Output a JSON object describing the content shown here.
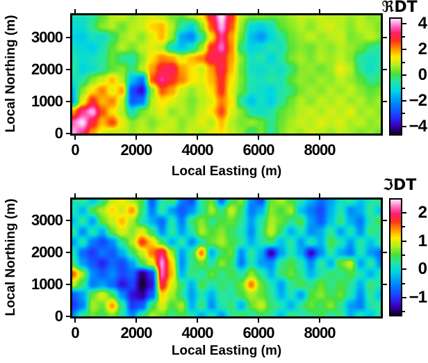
{
  "page": {
    "background": "#ffffff"
  },
  "colormap": {
    "positions": [
      0.0,
      0.08,
      0.16,
      0.26,
      0.38,
      0.46,
      0.52,
      0.6,
      0.67,
      0.74,
      0.81,
      0.88,
      0.94,
      1.0
    ],
    "colors": [
      "#140028",
      "#3c00c8",
      "#1e3cff",
      "#0082ff",
      "#00d7e1",
      "#28e6a0",
      "#46e13c",
      "#b4f01e",
      "#ffeb00",
      "#ff9600",
      "#ff3219",
      "#ff1e6e",
      "#ff6ec8",
      "#ffe1f5"
    ]
  },
  "chart_data": [
    {
      "type": "heatmap",
      "title": "ℜDT",
      "xlabel": "Local Easting (m)",
      "ylabel": "Local Northing (m)",
      "x_range": [
        0,
        10000
      ],
      "y_range": [
        0,
        3700
      ],
      "x_ticks": [
        0,
        2000,
        4000,
        6000,
        8000
      ],
      "x_tick_labels": [
        "0",
        "2000",
        "4000",
        "6000",
        "8000"
      ],
      "y_ticks": [
        0,
        1000,
        2000,
        3000
      ],
      "y_tick_labels": [
        "0",
        "1000",
        "2000",
        "3000"
      ],
      "colorbar": {
        "vmin": -4.6,
        "vmax": 4.4,
        "major_ticks": [
          4,
          2,
          0,
          -2,
          -4
        ],
        "major_labels": [
          "4",
          "2",
          "0",
          "−2",
          "−4"
        ],
        "minor_ticks": [
          3,
          1,
          -1,
          -3
        ]
      },
      "values": [
        [
          -0.8,
          -0.8,
          -0.5,
          0.2,
          0.8,
          1.0,
          0.6,
          0.9,
          1.1,
          0.9,
          0.4,
          0.2,
          0.8,
          1.4,
          3.0,
          4.5,
          2.8,
          0.8,
          0.4,
          0.5,
          0.3,
          0.4,
          0.7,
          0.9,
          0.8,
          1.0,
          0.8,
          0.9,
          0.6,
          0.8,
          0.5,
          0.6
        ],
        [
          -1.0,
          -1.0,
          -0.3,
          0.5,
          0.8,
          0.3,
          0.8,
          1.0,
          1.6,
          1.8,
          0.8,
          -0.5,
          -1.2,
          0.5,
          2.5,
          4.2,
          2.5,
          0.6,
          -1.0,
          -1.3,
          -0.8,
          0.2,
          0.5,
          0.8,
          0.5,
          0.9,
          1.1,
          0.8,
          0.5,
          0.9,
          0.7,
          0.4
        ],
        [
          -1.2,
          -1.4,
          -0.8,
          -0.9,
          -0.3,
          0.6,
          0.9,
          0.5,
          1.2,
          1.8,
          0.6,
          -1.8,
          -2.2,
          -0.5,
          1.5,
          3.5,
          2.0,
          0.3,
          -1.5,
          -2.0,
          -1.2,
          -0.5,
          0.3,
          0.6,
          0.9,
          0.6,
          0.8,
          1.0,
          0.4,
          0.6,
          0.9,
          0.5
        ],
        [
          -0.9,
          -1.1,
          -1.3,
          -0.7,
          0.2,
          0.8,
          0.4,
          0.9,
          1.2,
          0.8,
          -0.8,
          -1.5,
          -0.8,
          0.6,
          2.8,
          3.8,
          2.2,
          -0.3,
          -1.2,
          -1.0,
          -0.6,
          -0.8,
          0.2,
          0.5,
          0.3,
          0.7,
          0.5,
          0.8,
          0.6,
          0.3,
          -0.3,
          -0.5
        ],
        [
          -0.6,
          -1.0,
          -0.8,
          -0.5,
          0.3,
          -0.4,
          -0.6,
          0.5,
          1.5,
          2.2,
          2.0,
          1.2,
          1.8,
          2.2,
          3.2,
          3.0,
          2.0,
          0.5,
          -0.8,
          -0.5,
          -1.2,
          -0.5,
          0.4,
          0.7,
          0.4,
          0.8,
          0.6,
          0.9,
          0.5,
          -0.5,
          -0.8,
          -0.6
        ],
        [
          -0.4,
          -1.2,
          -0.9,
          -0.4,
          0.2,
          0.5,
          -0.3,
          0.8,
          2.0,
          3.0,
          3.3,
          2.0,
          1.5,
          1.0,
          2.0,
          3.2,
          1.8,
          0.3,
          -0.8,
          -1.0,
          -0.7,
          -0.9,
          -0.3,
          0.5,
          0.6,
          0.3,
          0.6,
          1.3,
          0.8,
          -0.4,
          -0.9,
          -0.5
        ],
        [
          -0.8,
          -0.5,
          0.5,
          1.0,
          1.8,
          0.8,
          -1.5,
          -2.5,
          2.5,
          3.5,
          2.8,
          2.2,
          1.5,
          1.2,
          1.8,
          2.8,
          1.5,
          0.4,
          -0.6,
          -0.8,
          -0.5,
          -0.7,
          0.2,
          0.6,
          0.4,
          0.7,
          0.5,
          0.9,
          0.6,
          0.2,
          -0.4,
          -0.2
        ],
        [
          -1.5,
          0.5,
          1.5,
          2.2,
          1.2,
          2.0,
          -3.0,
          -3.8,
          0.5,
          2.5,
          2.0,
          1.0,
          0.6,
          1.0,
          1.5,
          2.8,
          1.2,
          0.3,
          -0.7,
          -0.9,
          -1.2,
          -0.6,
          -0.3,
          0.4,
          0.7,
          0.5,
          0.8,
          0.6,
          0.9,
          0.5,
          0.2,
          0.4
        ],
        [
          -1.8,
          1.2,
          2.8,
          1.8,
          2.2,
          1.0,
          -2.8,
          -2.5,
          0.8,
          1.5,
          1.2,
          0.8,
          0.4,
          0.8,
          1.2,
          2.2,
          1.5,
          -0.5,
          -1.5,
          -0.8,
          -1.3,
          -0.5,
          0.3,
          0.8,
          0.5,
          0.9,
          0.7,
          1.0,
          0.6,
          0.8,
          0.4,
          0.7
        ],
        [
          2.0,
          3.5,
          4.2,
          2.5,
          1.5,
          0.8,
          -0.8,
          0.4,
          0.8,
          1.2,
          0.5,
          0.8,
          0.5,
          1.0,
          1.5,
          2.6,
          1.2,
          0.5,
          -0.6,
          -0.9,
          -0.6,
          0.2,
          0.5,
          0.8,
          1.0,
          0.7,
          1.1,
          0.8,
          1.2,
          0.6,
          0.8,
          0.5
        ],
        [
          3.8,
          4.4,
          3.0,
          1.8,
          2.6,
          1.2,
          0.5,
          0.8,
          0.4,
          0.8,
          1.0,
          0.5,
          0.8,
          1.2,
          0.8,
          1.8,
          0.8,
          0.4,
          0.6,
          0.3,
          -0.4,
          0.3,
          0.7,
          1.0,
          0.8,
          1.2,
          0.9,
          1.1,
          0.7,
          0.9,
          0.5,
          0.7
        ],
        [
          4.2,
          3.5,
          2.0,
          1.2,
          0.8,
          1.0,
          0.6,
          0.9,
          0.7,
          1.1,
          0.8,
          0.6,
          1.0,
          0.7,
          1.2,
          1.5,
          0.9,
          0.6,
          -0.3,
          0.4,
          -0.5,
          0.4,
          0.8,
          0.6,
          1.0,
          0.8,
          0.6,
          0.9,
          0.7,
          0.4,
          0.6,
          0.3
        ]
      ]
    },
    {
      "type": "heatmap",
      "title": "ℑDT",
      "xlabel": "Local Easting (m)",
      "ylabel": "Local Northing (m)",
      "x_range": [
        0,
        10000
      ],
      "y_range": [
        0,
        3700
      ],
      "x_ticks": [
        0,
        2000,
        4000,
        6000,
        8000
      ],
      "x_tick_labels": [
        "0",
        "2000",
        "4000",
        "6000",
        "8000"
      ],
      "y_ticks": [
        0,
        1000,
        2000,
        3000
      ],
      "y_tick_labels": [
        "0",
        "1000",
        "2000",
        "3000"
      ],
      "colorbar": {
        "vmin": -1.62,
        "vmax": 2.47,
        "major_ticks": [
          2,
          1,
          0,
          -1
        ],
        "major_labels": [
          "2",
          "1",
          "0",
          "−1"
        ],
        "minor_ticks": [
          1.5,
          0.5,
          -0.5,
          -1.5
        ]
      },
      "values": [
        [
          0.1,
          0.4,
          -0.2,
          0.3,
          0.9,
          1.1,
          0.8,
          0.5,
          -0.8,
          0.2,
          0.5,
          -0.6,
          -0.9,
          0.3,
          0.6,
          -0.7,
          0.4,
          0.7,
          -0.5,
          -0.9,
          0.6,
          0.8,
          0.5,
          0.2,
          -0.3,
          -0.7,
          -0.4,
          0.1,
          0.3,
          -0.2,
          0.2,
          0.4
        ],
        [
          0.2,
          -0.3,
          0.5,
          0.8,
          1.2,
          0.9,
          1.4,
          0.4,
          -0.6,
          0.3,
          -0.4,
          -0.8,
          -0.5,
          0.2,
          0.8,
          0.3,
          0.9,
          0.4,
          -0.6,
          -0.3,
          0.7,
          0.5,
          0.8,
          -0.2,
          -0.6,
          -0.9,
          -0.3,
          0.2,
          -0.5,
          -0.3,
          0.3,
          -0.2
        ],
        [
          -0.2,
          0.3,
          -0.4,
          0.6,
          0.9,
          1.3,
          0.8,
          0.2,
          -0.3,
          -0.7,
          0.2,
          -0.6,
          0.4,
          0.7,
          0.3,
          0.5,
          0.6,
          0.3,
          -0.4,
          0.2,
          0.8,
          0.6,
          0.3,
          0.5,
          -0.4,
          -0.8,
          -0.2,
          0.4,
          -0.3,
          -0.6,
          0.2,
          0.5
        ],
        [
          0.3,
          -0.5,
          0.2,
          -0.3,
          0.6,
          1.0,
          0.7,
          1.0,
          0.4,
          -0.5,
          0.3,
          -0.4,
          0.2,
          0.8,
          0.5,
          0.7,
          0.4,
          0.2,
          -0.5,
          0.3,
          0.9,
          0.4,
          -0.3,
          0.2,
          -0.5,
          -0.3,
          0.3,
          -0.4,
          0.2,
          -0.5,
          0.4,
          0.2
        ],
        [
          -0.4,
          0.2,
          -0.6,
          -0.9,
          -0.5,
          0.3,
          0.8,
          1.7,
          1.2,
          0.5,
          -0.3,
          0.3,
          -0.5,
          0.2,
          0.6,
          0.8,
          0.5,
          0.3,
          -0.3,
          0.2,
          0.4,
          -0.2,
          0.3,
          -0.4,
          0.2,
          -0.3,
          0.5,
          0.2,
          -0.4,
          0.3,
          -0.2,
          0.3
        ],
        [
          0.2,
          -0.7,
          -1.0,
          -0.6,
          -0.8,
          -0.3,
          0.4,
          0.9,
          1.5,
          2.0,
          0.8,
          -0.4,
          0.3,
          1.5,
          -0.3,
          0.4,
          0.6,
          -0.5,
          0.3,
          -0.3,
          -1.4,
          -0.4,
          0.2,
          -0.3,
          -1.3,
          -0.5,
          0.3,
          -0.3,
          -0.6,
          0.2,
          -0.4,
          -0.7
        ],
        [
          0.4,
          -0.4,
          -0.8,
          -1.1,
          -0.7,
          -0.9,
          -0.4,
          0.5,
          1.0,
          2.3,
          1.2,
          -0.5,
          0.3,
          0.6,
          0.2,
          0.7,
          0.4,
          -0.6,
          0.2,
          -0.4,
          -0.5,
          0.3,
          0.5,
          0.2,
          -0.5,
          0.3,
          -0.3,
          0.6,
          0.9,
          -0.4,
          0.3,
          -0.5
        ],
        [
          1.6,
          0.8,
          -0.5,
          -0.8,
          -0.5,
          -0.9,
          -0.7,
          -1.5,
          -1.0,
          2.2,
          1.3,
          -0.3,
          0.4,
          0.2,
          0.6,
          0.3,
          0.5,
          0.2,
          0.7,
          0.3,
          -0.3,
          0.4,
          0.6,
          0.3,
          -0.3,
          0.2,
          0.4,
          0.3,
          0.5,
          0.2,
          -0.3,
          0.2
        ],
        [
          0.9,
          0.4,
          -0.6,
          -0.4,
          -0.7,
          -1.2,
          -0.9,
          -1.6,
          -1.2,
          1.9,
          1.0,
          0.4,
          -0.3,
          0.5,
          0.2,
          0.4,
          0.3,
          0.6,
          1.5,
          0.6,
          0.2,
          -0.4,
          0.3,
          0.5,
          0.3,
          0.6,
          0.3,
          0.5,
          0.3,
          -0.3,
          0.4,
          0.2
        ],
        [
          -0.8,
          -0.4,
          0.6,
          1.0,
          0.5,
          -0.5,
          -1.2,
          -1.4,
          -0.8,
          1.2,
          0.8,
          0.3,
          -0.4,
          0.2,
          -0.3,
          0.3,
          0.2,
          0.5,
          0.8,
          0.6,
          0.3,
          -0.3,
          0.2,
          -0.4,
          0.5,
          0.7,
          0.4,
          0.6,
          0.2,
          -0.5,
          0.3,
          -0.2
        ],
        [
          -1.0,
          -0.6,
          0.8,
          0.6,
          1.4,
          0.3,
          -1.0,
          -0.8,
          0.4,
          1.0,
          0.5,
          0.8,
          -0.3,
          0.4,
          -0.5,
          0.2,
          0.4,
          -0.3,
          0.6,
          0.9,
          0.4,
          0.2,
          -0.3,
          0.3,
          0.6,
          0.4,
          0.7,
          0.3,
          -0.4,
          -0.6,
          0.2,
          0.3
        ],
        [
          -0.5,
          0.3,
          0.6,
          0.4,
          0.7,
          0.2,
          -0.5,
          0.3,
          0.8,
          0.6,
          0.3,
          0.5,
          0.2,
          -0.3,
          0.2,
          -0.4,
          0.3,
          0.5,
          0.2,
          0.4,
          0.3,
          -0.2,
          0.4,
          0.2,
          0.3,
          0.5,
          0.2,
          0.4,
          -0.3,
          0.2,
          -0.2,
          0.3
        ]
      ]
    }
  ]
}
